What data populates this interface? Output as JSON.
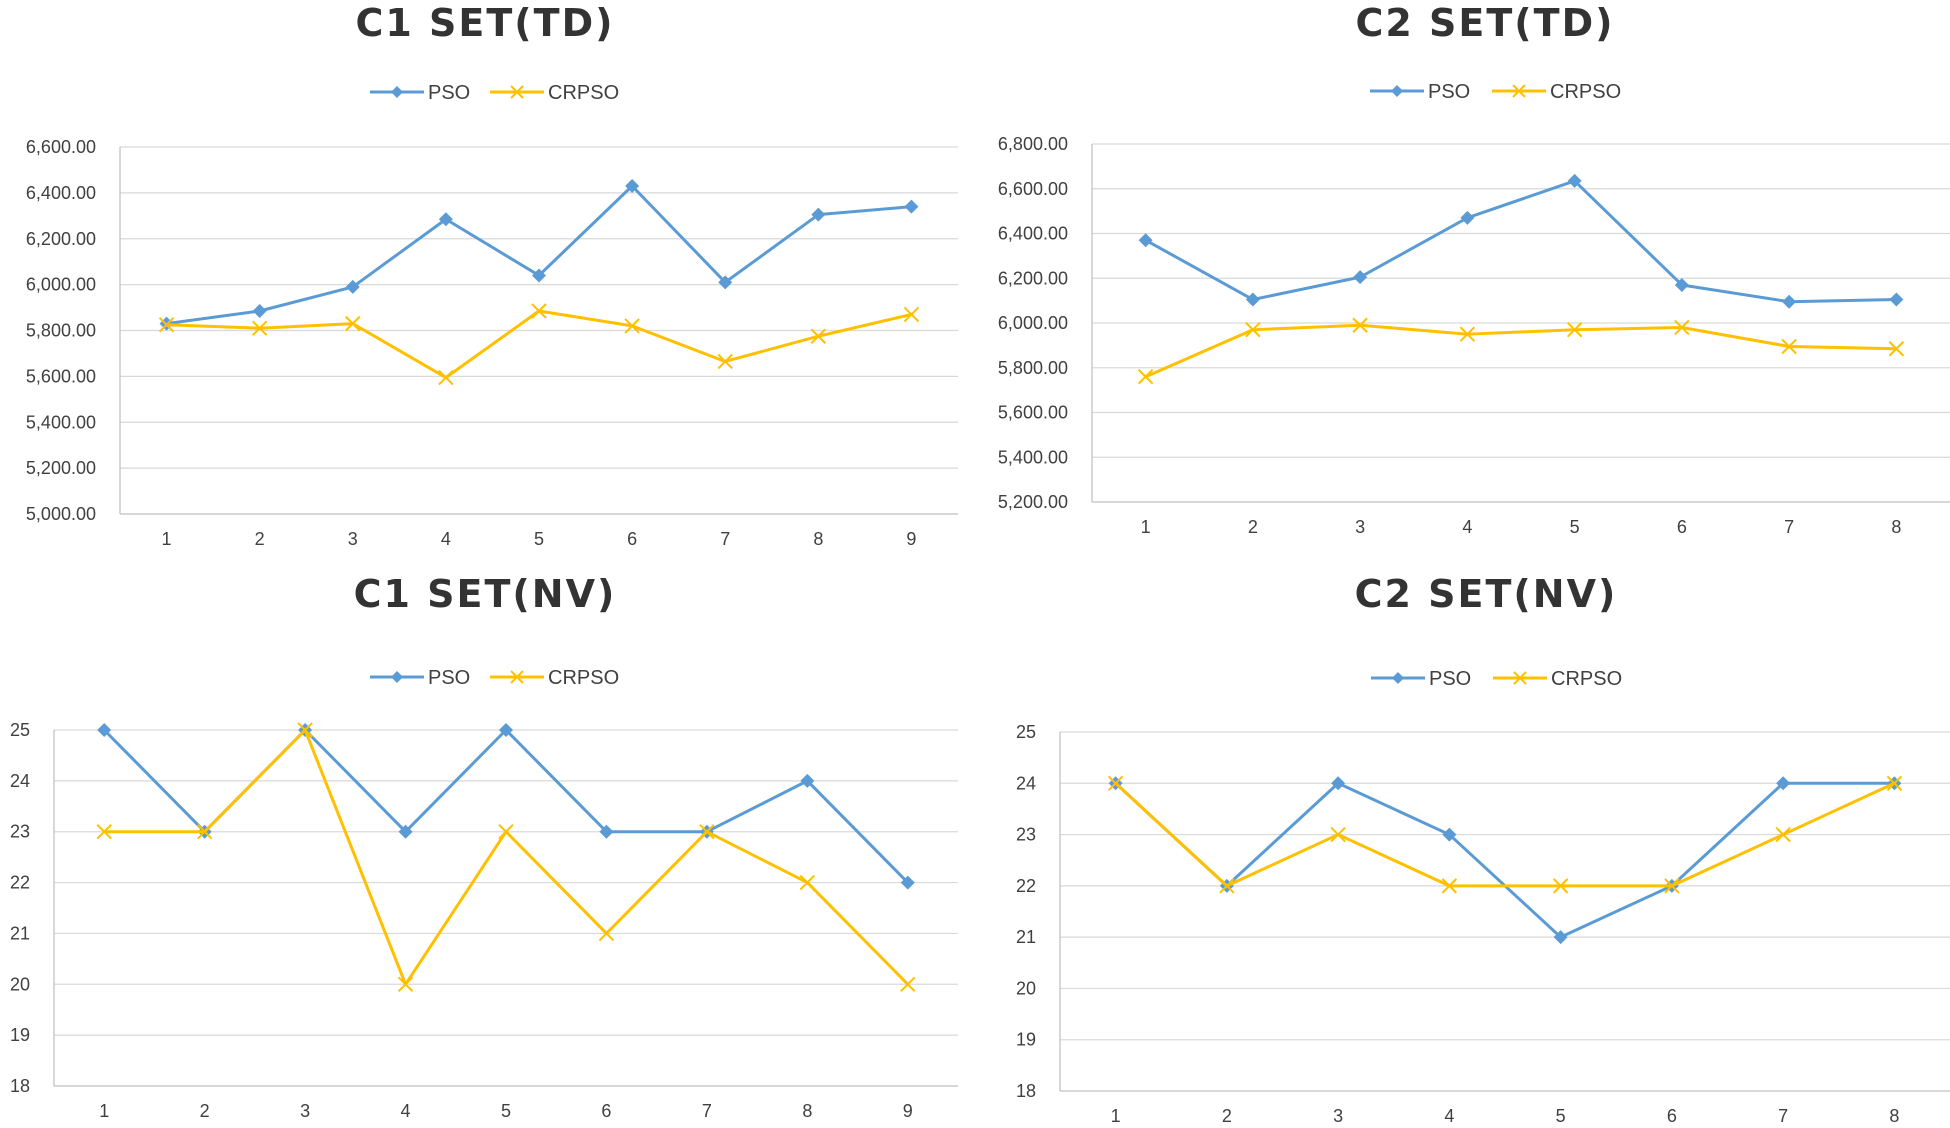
{
  "colors": {
    "pso": "#5b9bd5",
    "crpso": "#ffc000"
  },
  "legend": {
    "pso": "PSO",
    "crpso": "CRPSO"
  },
  "chart_data": [
    {
      "type": "line",
      "title": "C1 SET(TD)",
      "categories": [
        "1",
        "2",
        "3",
        "4",
        "5",
        "6",
        "7",
        "8",
        "9"
      ],
      "y_tick_labels": [
        "5,000.00",
        "5,200.00",
        "5,400.00",
        "5,600.00",
        "5,800.00",
        "6,000.00",
        "6,200.00",
        "6,400.00",
        "6,600.00"
      ],
      "ylim": [
        5000,
        6600
      ],
      "y_step": 200,
      "grid": true,
      "legend_position": "top",
      "series": [
        {
          "name": "PSO",
          "marker": "diamond",
          "values": [
            5830,
            5885,
            5990,
            6285,
            6040,
            6430,
            6010,
            6305,
            6340
          ]
        },
        {
          "name": "CRPSO",
          "marker": "x",
          "values": [
            5825,
            5810,
            5830,
            5595,
            5885,
            5820,
            5665,
            5775,
            5870
          ]
        }
      ]
    },
    {
      "type": "line",
      "title": "C2 SET(TD)",
      "categories": [
        "1",
        "2",
        "3",
        "4",
        "5",
        "6",
        "7",
        "8"
      ],
      "y_tick_labels": [
        "5,200.00",
        "5,400.00",
        "5,600.00",
        "5,800.00",
        "6,000.00",
        "6,200.00",
        "6,400.00",
        "6,600.00",
        "6,800.00"
      ],
      "ylim": [
        5200,
        6800
      ],
      "y_step": 200,
      "grid": true,
      "legend_position": "top",
      "series": [
        {
          "name": "PSO",
          "marker": "diamond",
          "values": [
            6370,
            6105,
            6205,
            6470,
            6635,
            6170,
            6095,
            6105
          ]
        },
        {
          "name": "CRPSO",
          "marker": "x",
          "values": [
            5760,
            5970,
            5990,
            5950,
            5970,
            5980,
            5895,
            5885
          ]
        }
      ]
    },
    {
      "type": "line",
      "title": "C1 SET(NV)",
      "categories": [
        "1",
        "2",
        "3",
        "4",
        "5",
        "6",
        "7",
        "8",
        "9"
      ],
      "y_tick_labels": [
        "18",
        "19",
        "20",
        "21",
        "22",
        "23",
        "24",
        "25"
      ],
      "ylim": [
        18,
        25
      ],
      "y_step": 1,
      "grid": true,
      "legend_position": "top",
      "series": [
        {
          "name": "PSO",
          "marker": "diamond",
          "values": [
            25,
            23,
            25,
            23,
            25,
            23,
            23,
            24,
            22
          ]
        },
        {
          "name": "CRPSO",
          "marker": "x",
          "values": [
            23,
            23,
            25,
            20,
            23,
            21,
            23,
            22,
            20
          ]
        }
      ]
    },
    {
      "type": "line",
      "title": "C2 SET(NV)",
      "categories": [
        "1",
        "2",
        "3",
        "4",
        "5",
        "6",
        "7",
        "8"
      ],
      "y_tick_labels": [
        "18",
        "19",
        "20",
        "21",
        "22",
        "23",
        "24",
        "25"
      ],
      "ylim": [
        18,
        25
      ],
      "y_step": 1,
      "grid": true,
      "legend_position": "top",
      "series": [
        {
          "name": "PSO",
          "marker": "diamond",
          "values": [
            24,
            22,
            24,
            23,
            21,
            22,
            24,
            24
          ]
        },
        {
          "name": "CRPSO",
          "marker": "x",
          "values": [
            24,
            22,
            23,
            22,
            22,
            22,
            23,
            24
          ]
        }
      ]
    }
  ]
}
